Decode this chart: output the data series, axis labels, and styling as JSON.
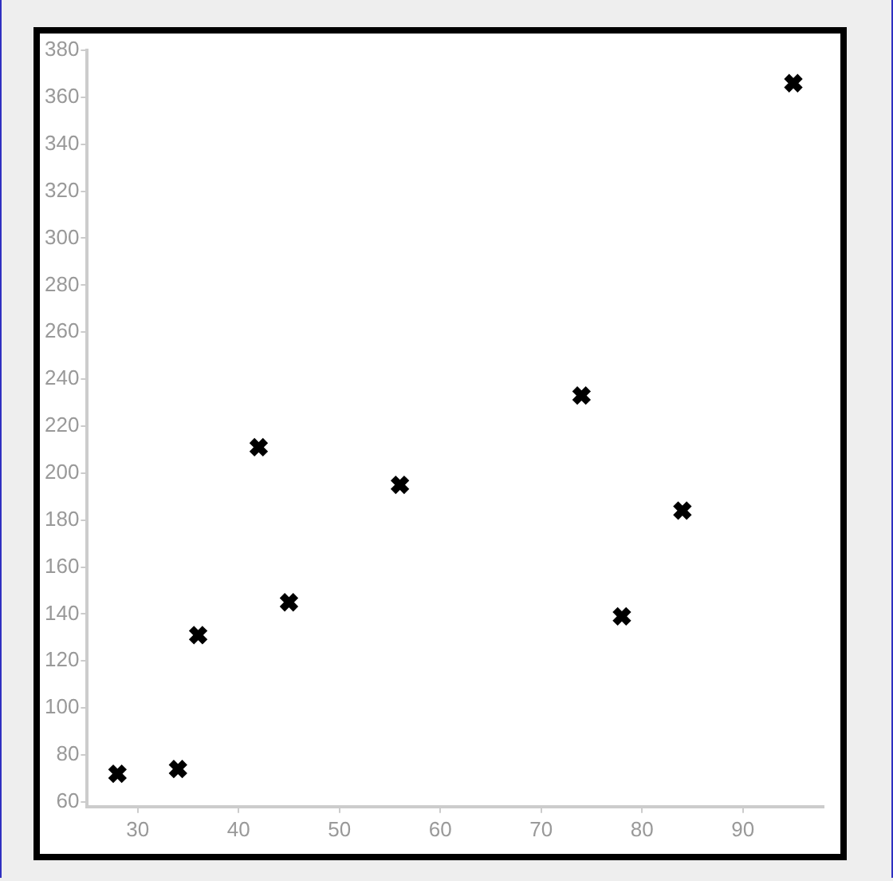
{
  "chart_data": {
    "type": "scatter",
    "x": [
      28,
      34,
      36,
      42,
      45,
      56,
      74,
      78,
      84,
      95
    ],
    "values": [
      72,
      74,
      131,
      211,
      145,
      195,
      233,
      139,
      184,
      366
    ],
    "color": "#000000",
    "marker": "cross",
    "xlim": [
      25,
      98
    ],
    "ylim": [
      58,
      380
    ],
    "xticks": [
      30,
      40,
      50,
      60,
      70,
      80,
      90
    ],
    "yticks": [
      60,
      80,
      100,
      120,
      140,
      160,
      180,
      200,
      220,
      240,
      260,
      280,
      300,
      320,
      340,
      360,
      380
    ],
    "grid": false,
    "legend": false
  }
}
